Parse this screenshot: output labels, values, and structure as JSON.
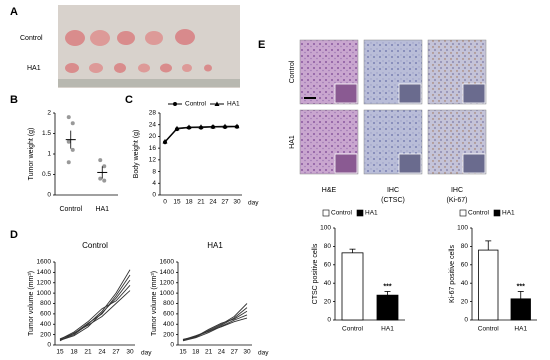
{
  "panels": [
    "A",
    "B",
    "C",
    "D",
    "E"
  ],
  "photo": {
    "rows": [
      "Control",
      "HA1"
    ]
  },
  "histology": {
    "rows": [
      "Control",
      "HA1"
    ],
    "columns": [
      [
        "H&E"
      ],
      [
        "IHC",
        "(CTSC)"
      ],
      [
        "IHC",
        "(Ki-67)"
      ]
    ]
  },
  "chart_data": [
    {
      "type": "dot",
      "ylabel": "Tumor weight (g)",
      "categories": [
        "Control",
        "HA1"
      ],
      "points": [
        [
          1.9,
          1.75,
          1.3,
          1.1,
          0.8
        ],
        [
          0.85,
          0.7,
          0.4,
          0.35
        ]
      ],
      "means": [
        1.35,
        0.55
      ],
      "errors": [
        0.22,
        0.15
      ],
      "color": "#999999",
      "ylim": [
        0,
        2
      ],
      "yticks": [
        0,
        0.5,
        1,
        1.5,
        2
      ]
    },
    {
      "type": "line",
      "ylabel": "Body weight (g)",
      "xlabel": "day",
      "categories": [
        "0",
        "15",
        "18",
        "21",
        "24",
        "27",
        "30"
      ],
      "series": [
        {
          "name": "Control",
          "color": "#000000",
          "marker": "circle",
          "values": [
            18,
            22.5,
            23,
            23,
            23.2,
            23.2,
            23.3
          ]
        },
        {
          "name": "HA1",
          "color": "#000000",
          "marker": "triangle",
          "values": [
            18.3,
            22.8,
            23.2,
            23.3,
            23.4,
            23.5,
            23.5
          ]
        }
      ],
      "legend": "top",
      "ylim": [
        0,
        28
      ],
      "yticks": [
        0,
        4,
        8,
        12,
        16,
        20,
        24,
        28
      ]
    },
    {
      "type": "line",
      "title": "Control",
      "ylabel": "Tumor volume (mm³)",
      "xlabel": "day",
      "categories": [
        "15",
        "18",
        "21",
        "24",
        "27",
        "30"
      ],
      "series": [
        {
          "color": "#333333",
          "values": [
            100,
            200,
            400,
            650,
            1000,
            1450
          ]
        },
        {
          "color": "#333333",
          "values": [
            120,
            220,
            420,
            600,
            950,
            1350
          ]
        },
        {
          "color": "#333333",
          "values": [
            90,
            180,
            350,
            620,
            900,
            1250
          ]
        },
        {
          "color": "#333333",
          "values": [
            110,
            250,
            450,
            700,
            850,
            1150
          ]
        },
        {
          "color": "#333333",
          "values": [
            80,
            230,
            380,
            550,
            800,
            1050
          ]
        }
      ],
      "ylim": [
        0,
        1600
      ],
      "yticks": [
        0,
        200,
        400,
        600,
        800,
        1000,
        1200,
        1400,
        1600
      ]
    },
    {
      "type": "line",
      "title": "HA1",
      "ylabel": "Tumor volume (mm³)",
      "xlabel": "day",
      "categories": [
        "15",
        "18",
        "21",
        "24",
        "27",
        "30"
      ],
      "series": [
        {
          "color": "#333333",
          "values": [
            100,
            150,
            280,
            400,
            550,
            800
          ]
        },
        {
          "color": "#333333",
          "values": [
            90,
            170,
            260,
            380,
            520,
            720
          ]
        },
        {
          "color": "#333333",
          "values": [
            110,
            160,
            300,
            420,
            500,
            650
          ]
        },
        {
          "color": "#333333",
          "values": [
            80,
            140,
            240,
            360,
            480,
            580
          ]
        },
        {
          "color": "#333333",
          "values": [
            100,
            180,
            270,
            350,
            450,
            520
          ]
        }
      ],
      "ylim": [
        0,
        1600
      ],
      "yticks": [
        0,
        200,
        400,
        600,
        800,
        1000,
        1200,
        1400,
        1600
      ]
    },
    {
      "type": "bar",
      "ylabel": "CTSC positive cells",
      "categories": [
        "Control",
        "HA1"
      ],
      "values": [
        73,
        27
      ],
      "errors": [
        4,
        4
      ],
      "colors": [
        "#ffffff",
        "#000000"
      ],
      "legend": [
        "Control",
        "HA1"
      ],
      "annotation": "***",
      "ylim": [
        0,
        100
      ],
      "yticks": [
        0,
        20,
        40,
        60,
        80,
        100
      ]
    },
    {
      "type": "bar",
      "ylabel": "Ki-67 positive cells",
      "categories": [
        "Control",
        "HA1"
      ],
      "values": [
        76,
        23
      ],
      "errors": [
        10,
        8
      ],
      "colors": [
        "#ffffff",
        "#000000"
      ],
      "legend": [
        "Control",
        "HA1"
      ],
      "annotation": "***",
      "ylim": [
        0,
        100
      ],
      "yticks": [
        0,
        20,
        40,
        60,
        80,
        100
      ]
    }
  ]
}
